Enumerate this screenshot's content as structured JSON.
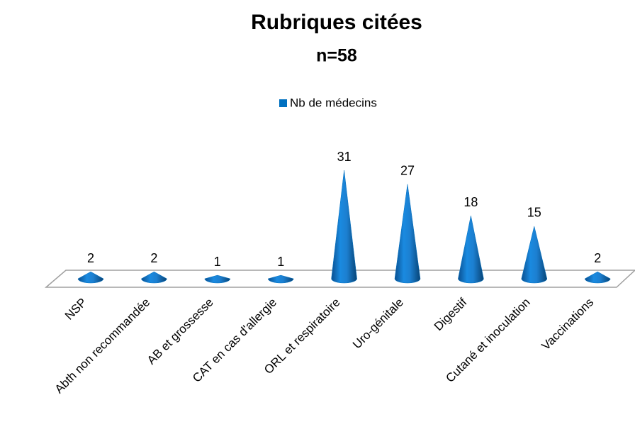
{
  "chart_data": {
    "type": "cone",
    "title": "Rubriques citées",
    "subtitle": "n=58",
    "categories": [
      "NSP",
      "Abth non recommandée",
      "AB et grossesse",
      "CAT en cas d'allergie",
      "ORL et respiratoire",
      "Uro-génitale",
      "Digestif",
      "Cutané et inoculation",
      "Vaccinations"
    ],
    "series": [
      {
        "name": "Nb de médecins",
        "color": "#0070c0",
        "values": [
          2,
          2,
          1,
          1,
          31,
          27,
          18,
          15,
          2
        ]
      }
    ],
    "legend": "top"
  }
}
